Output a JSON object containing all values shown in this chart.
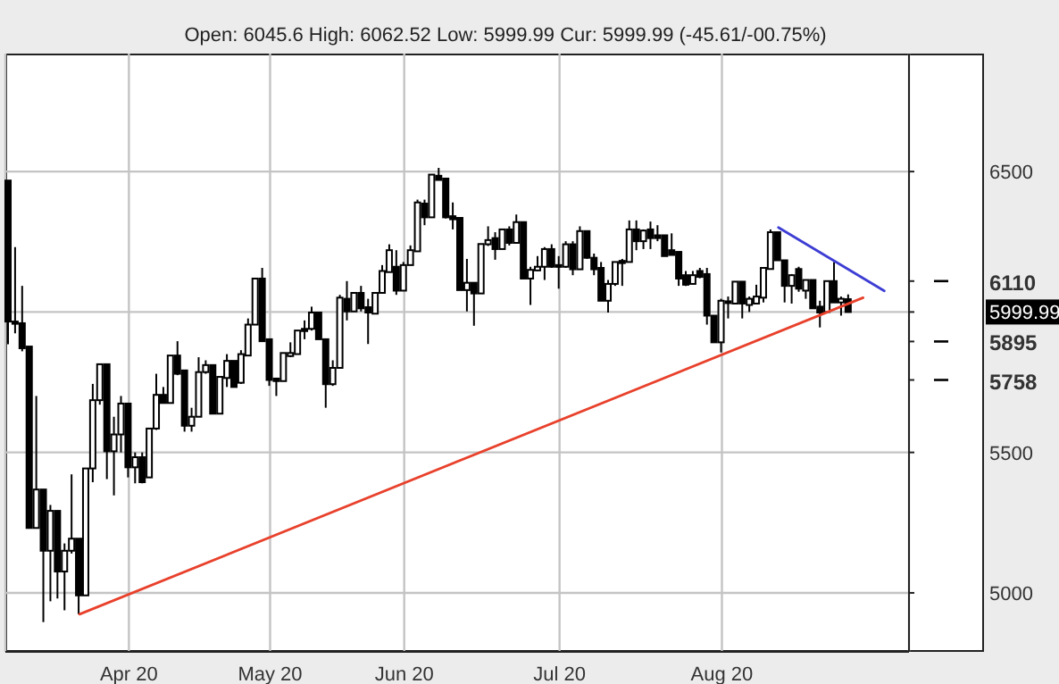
{
  "chart_data": {
    "type": "candlestick",
    "subtitle": "Open: 6045.6 High: 6062.52 Low: 5999.99 Cur: 5999.99 (-45.61/-00.75%)",
    "categories": [
      null,
      null,
      null,
      null,
      null,
      null,
      null,
      null,
      null,
      null,
      null,
      null,
      null,
      null,
      null,
      null,
      null,
      "Apr 20",
      null,
      null,
      null,
      null,
      null,
      null,
      null,
      null,
      null,
      null,
      null,
      null,
      null,
      null,
      null,
      null,
      null,
      null,
      null,
      "May 20",
      null,
      null,
      null,
      null,
      null,
      null,
      null,
      null,
      null,
      null,
      null,
      null,
      null,
      null,
      null,
      null,
      null,
      null,
      "Jun 20",
      null,
      null,
      null,
      null,
      null,
      null,
      null,
      null,
      null,
      null,
      null,
      null,
      null,
      null,
      null,
      null,
      null,
      null,
      null,
      null,
      null,
      "Jul 20",
      null,
      null,
      null,
      null,
      null,
      null,
      null,
      null,
      null,
      null,
      null,
      null,
      null,
      null,
      null,
      null,
      null,
      null,
      null,
      null,
      null,
      null,
      "Aug 20",
      null,
      null,
      null,
      null,
      null,
      null,
      null,
      null,
      null,
      null,
      null,
      null,
      null,
      null,
      null,
      null,
      null,
      null,
      null,
      null,
      null,
      null,
      null,
      null,
      null,
      null
    ],
    "ohlc": [
      [
        6468,
        6468,
        5885,
        5966
      ],
      [
        5966,
        6231,
        5924,
        5958
      ],
      [
        5960,
        6093,
        5860,
        5871
      ],
      [
        5877,
        5877,
        5231,
        5231
      ],
      [
        5231,
        5701,
        5231,
        5368
      ],
      [
        5368,
        5368,
        4896,
        5150
      ],
      [
        5150,
        5313,
        4970,
        5292
      ],
      [
        5292,
        5292,
        4980,
        5076
      ],
      [
        5076,
        5176,
        4938,
        5150
      ],
      [
        5150,
        5422,
        5140,
        5193
      ],
      [
        5193,
        5193,
        4924,
        4991
      ],
      [
        4991,
        5443,
        4991,
        5443
      ],
      [
        5443,
        5744,
        5394,
        5686
      ],
      [
        5686,
        5814,
        5670,
        5814
      ],
      [
        5814,
        5814,
        5405,
        5504
      ],
      [
        5504,
        5627,
        5347,
        5564
      ],
      [
        5564,
        5701,
        5500,
        5674
      ],
      [
        5674,
        5674,
        5411,
        5447
      ],
      [
        5447,
        5500,
        5390,
        5483
      ],
      [
        5483,
        5500,
        5390,
        5394
      ],
      [
        5411,
        5585,
        5411,
        5585
      ],
      [
        5585,
        5780,
        5580,
        5705
      ],
      [
        5705,
        5733,
        5676,
        5676
      ],
      [
        5676,
        5845,
        5676,
        5845
      ],
      [
        5845,
        5896,
        5775,
        5780
      ],
      [
        5792,
        5792,
        5574,
        5595
      ],
      [
        5595,
        5659,
        5574,
        5627
      ],
      [
        5627,
        5839,
        5627,
        5786
      ],
      [
        5786,
        5828,
        5780,
        5811
      ],
      [
        5811,
        5811,
        5638,
        5638
      ],
      [
        5638,
        5769,
        5638,
        5769
      ],
      [
        5765,
        5850,
        5733,
        5826
      ],
      [
        5826,
        5826,
        5733,
        5733
      ],
      [
        5748,
        5864,
        5744,
        5850
      ],
      [
        5845,
        5977,
        5845,
        5955
      ],
      [
        5955,
        6119,
        5955,
        6119
      ],
      [
        6119,
        6157,
        5896,
        5896
      ],
      [
        5903,
        5903,
        5737,
        5758
      ],
      [
        5763,
        5763,
        5701,
        5754
      ],
      [
        5754,
        5854,
        5754,
        5854
      ],
      [
        5843,
        5892,
        5839,
        5854
      ],
      [
        5850,
        5934,
        5850,
        5934
      ],
      [
        5940,
        5970,
        5903,
        5932
      ],
      [
        5940,
        6019,
        5934,
        5998
      ],
      [
        5998,
        5998,
        5903,
        5903
      ],
      [
        5903,
        5903,
        5659,
        5743
      ],
      [
        5743,
        5828,
        5737,
        5801
      ],
      [
        5801,
        6061,
        5801,
        6051
      ],
      [
        6047,
        6110,
        5970,
        6002
      ],
      [
        6002,
        6068,
        6002,
        6068
      ],
      [
        6068,
        6093,
        6002,
        6013
      ],
      [
        6017,
        6047,
        5886,
        5998
      ],
      [
        5994,
        6068,
        5994,
        6068
      ],
      [
        6068,
        6167,
        6068,
        6146
      ],
      [
        6142,
        6241,
        6142,
        6220
      ],
      [
        6161,
        6220,
        6061,
        6076
      ],
      [
        6076,
        6178,
        6076,
        6167
      ],
      [
        6167,
        6237,
        6167,
        6220
      ],
      [
        6216,
        6400,
        6216,
        6390
      ],
      [
        6386,
        6400,
        6309,
        6337
      ],
      [
        6337,
        6489,
        6337,
        6489
      ],
      [
        6485,
        6513,
        6470,
        6470
      ],
      [
        6475,
        6475,
        6333,
        6337
      ],
      [
        6341,
        6390,
        6294,
        6330
      ],
      [
        6335,
        6335,
        6078,
        6078
      ],
      [
        6078,
        6189,
        6002,
        6104
      ],
      [
        6104,
        6104,
        5951,
        6066
      ],
      [
        6066,
        6242,
        6066,
        6242
      ],
      [
        6241,
        6305,
        6235,
        6256
      ],
      [
        6263,
        6284,
        6186,
        6224
      ],
      [
        6224,
        6294,
        6224,
        6294
      ],
      [
        6294,
        6305,
        6237,
        6246
      ],
      [
        6246,
        6347,
        6246,
        6320
      ],
      [
        6320,
        6320,
        6119,
        6119
      ],
      [
        6119,
        6161,
        6025,
        6150
      ],
      [
        6148,
        6199,
        6146,
        6161
      ],
      [
        6161,
        6231,
        6114,
        6224
      ],
      [
        6224,
        6241,
        6157,
        6161
      ],
      [
        6167,
        6199,
        6083,
        6161
      ],
      [
        6161,
        6252,
        6157,
        6241
      ],
      [
        6241,
        6252,
        6131,
        6152
      ],
      [
        6152,
        6305,
        6152,
        6288
      ],
      [
        6288,
        6288,
        6189,
        6193
      ],
      [
        6193,
        6208,
        6131,
        6152
      ],
      [
        6157,
        6178,
        6040,
        6040
      ],
      [
        6040,
        6114,
        5998,
        6100
      ],
      [
        6100,
        6178,
        6093,
        6178
      ],
      [
        6182,
        6189,
        6093,
        6174
      ],
      [
        6178,
        6326,
        6178,
        6294
      ],
      [
        6294,
        6326,
        6220,
        6252
      ],
      [
        6252,
        6294,
        6224,
        6290
      ],
      [
        6294,
        6322,
        6224,
        6263
      ],
      [
        6273,
        6309,
        6252,
        6263
      ],
      [
        6273,
        6273,
        6199,
        6199
      ],
      [
        6220,
        6280,
        6203,
        6203
      ],
      [
        6214,
        6214,
        6093,
        6119
      ],
      [
        6131,
        6146,
        6093,
        6097
      ],
      [
        6100,
        6146,
        6098,
        6131
      ],
      [
        6146,
        6157,
        6120,
        6125
      ],
      [
        6135,
        6157,
        5955,
        5987
      ],
      [
        5987,
        5987,
        5892,
        5892
      ],
      [
        5892,
        6047,
        5856,
        6040
      ],
      [
        6034,
        6055,
        5977,
        6038
      ],
      [
        6030,
        6108,
        6030,
        6108
      ],
      [
        6108,
        6108,
        5977,
        6030
      ],
      [
        6025,
        6055,
        6000,
        6047
      ],
      [
        6030,
        6097,
        6030,
        6055
      ],
      [
        6051,
        6157,
        6034,
        6157
      ],
      [
        6153,
        6294,
        6153,
        6284
      ],
      [
        6284,
        6284,
        6184,
        6184
      ],
      [
        6184,
        6184,
        6034,
        6093
      ],
      [
        6093,
        6135,
        6030,
        6131
      ],
      [
        6153,
        6161,
        6072,
        6083
      ],
      [
        6076,
        6114,
        6047,
        6114
      ],
      [
        6114,
        6114,
        6013,
        6013
      ],
      [
        6019,
        6040,
        5945,
        5998
      ],
      [
        6000,
        6110,
        6000,
        6110
      ],
      [
        6110,
        6178,
        6034,
        6034
      ],
      [
        6034,
        6055,
        5987,
        6047
      ],
      [
        6045.6,
        6062.52,
        5999.99,
        5999.99
      ],
      null,
      null,
      null,
      null,
      null,
      null,
      null,
      null
    ],
    "color": "#000000",
    "ylim": [
      4790,
      6920
    ],
    "yticks": [
      5000,
      5500,
      {
        "value": 5758,
        "label": "5758"
      },
      {
        "value": 5895,
        "label": "5895"
      },
      {
        "value": 5999.99,
        "label": "5999.99"
      },
      {
        "value": 6110,
        "label": "6110"
      },
      6500
    ],
    "grid": true,
    "series": [
      {
        "type": "line",
        "color": "#e8412c",
        "values": [
          null,
          null,
          null,
          null,
          null,
          null,
          null,
          null,
          null,
          null,
          4924,
          null,
          null,
          null,
          null,
          null,
          null,
          null,
          null,
          null,
          null,
          null,
          null,
          null,
          null,
          null,
          null,
          null,
          null,
          null,
          null,
          null,
          null,
          null,
          null,
          null,
          null,
          null,
          null,
          null,
          null,
          null,
          null,
          null,
          null,
          null,
          null,
          null,
          null,
          null,
          null,
          null,
          null,
          null,
          null,
          null,
          null,
          null,
          null,
          null,
          null,
          null,
          null,
          null,
          null,
          null,
          null,
          null,
          null,
          null,
          null,
          null,
          null,
          null,
          null,
          null,
          null,
          null,
          null,
          null,
          null,
          null,
          null,
          null,
          null,
          null,
          null,
          null,
          null,
          null,
          null,
          null,
          null,
          null,
          null,
          null,
          null,
          null,
          null,
          null,
          null,
          null,
          null,
          null,
          null,
          null,
          null,
          null,
          null,
          null,
          null,
          null,
          null,
          null,
          null,
          null,
          null,
          null,
          null,
          null,
          null,
          6051,
          null,
          null,
          null,
          null,
          null,
          null
        ]
      },
      {
        "type": "line",
        "color": "#3d3dd4",
        "values": [
          null,
          null,
          null,
          null,
          null,
          null,
          null,
          null,
          null,
          null,
          null,
          null,
          null,
          null,
          null,
          null,
          null,
          null,
          null,
          null,
          null,
          null,
          null,
          null,
          null,
          null,
          null,
          null,
          null,
          null,
          null,
          null,
          null,
          null,
          null,
          null,
          null,
          null,
          null,
          null,
          null,
          null,
          null,
          null,
          null,
          null,
          null,
          null,
          null,
          null,
          null,
          null,
          null,
          null,
          null,
          null,
          null,
          null,
          null,
          null,
          null,
          null,
          null,
          null,
          null,
          null,
          null,
          null,
          null,
          null,
          null,
          null,
          null,
          null,
          null,
          null,
          null,
          null,
          null,
          null,
          null,
          null,
          null,
          null,
          null,
          null,
          null,
          null,
          null,
          null,
          null,
          null,
          null,
          null,
          null,
          null,
          null,
          null,
          null,
          null,
          null,
          null,
          null,
          null,
          null,
          null,
          null,
          null,
          null,
          6301,
          null,
          null,
          null,
          null,
          null,
          null,
          null,
          null,
          null,
          null,
          null,
          null,
          null,
          null,
          6075,
          null,
          null,
          null
        ]
      }
    ]
  }
}
